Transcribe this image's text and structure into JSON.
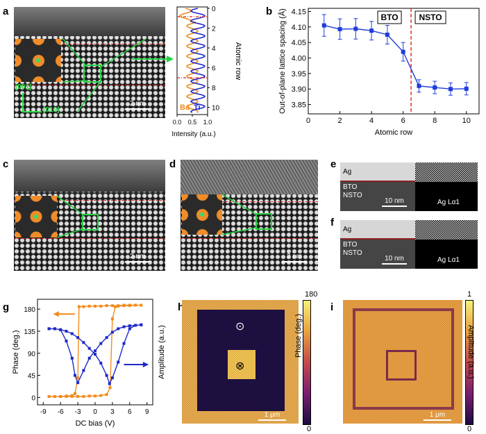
{
  "panels": {
    "a": "a",
    "b": "b",
    "c": "c",
    "d": "d",
    "e": "e",
    "f": "f",
    "g": "g",
    "h": "h",
    "i": "i"
  },
  "a": {
    "axis_001": "[001]",
    "axis_010": "[010]",
    "scalebar": "2 nm",
    "profile": {
      "ylabel": "Atomic row",
      "xlabel": "Intensity (a.u.)",
      "yticks": [
        "0",
        "2",
        "4",
        "6",
        "8",
        "10"
      ],
      "xticks": [
        "0.0",
        "0.5",
        "1.0"
      ],
      "ba_label": "Ba",
      "ti_label": "Ti",
      "ba_color": "#f08c1e",
      "ti_color": "#1e28c8"
    }
  },
  "chart_data": [
    {
      "type": "line",
      "panel": "b",
      "x": [
        1,
        2,
        3,
        4,
        5,
        6,
        7,
        8,
        9,
        10
      ],
      "y": [
        4.105,
        4.093,
        4.094,
        4.088,
        4.075,
        4.02,
        3.91,
        3.905,
        3.9,
        3.901
      ],
      "yerr": [
        0.035,
        0.033,
        0.033,
        0.03,
        0.03,
        0.03,
        0.02,
        0.02,
        0.02,
        0.02
      ],
      "xlabel": "Atomic row",
      "ylabel": "Out-of-plane lattice spacing (Å)",
      "xlim": [
        0,
        10.8
      ],
      "ylim": [
        3.82,
        4.16
      ],
      "xticks": [
        "0",
        "2",
        "4",
        "6",
        "8",
        "10"
      ],
      "yticks": [
        "3.85",
        "3.90",
        "3.95",
        "4.00",
        "4.05",
        "4.10",
        "4.15"
      ],
      "boundary_x": 6.5,
      "annotations": [
        "BTO",
        "NSTO"
      ],
      "line_color": "#1e3cdc",
      "boundary_color": "#e02020"
    },
    {
      "type": "line",
      "panel": "g",
      "xlabel": "DC bias (V)",
      "ylabel": "Phase (deg.)",
      "right_label": "Amplitude (a.u.)",
      "xlim": [
        -10,
        10
      ],
      "ylim": [
        -15,
        200
      ],
      "xticks": [
        "-9",
        "-6",
        "-3",
        "0",
        "3",
        "6",
        "9"
      ],
      "yticks": [
        "0",
        "45",
        "90",
        "135",
        "180"
      ],
      "series": [
        {
          "color": "#f08c1e",
          "x": [
            -8,
            -7,
            -6,
            -5,
            -4,
            -3.5,
            -3,
            -2.8,
            -2,
            -1,
            0,
            1,
            2,
            3,
            4,
            5,
            6,
            7,
            8,
            8,
            7,
            6,
            5,
            4,
            3.5,
            3,
            2.6,
            2,
            1,
            0,
            -1,
            -2,
            -3,
            -4,
            -5,
            -6,
            -7,
            -8
          ],
          "y": [
            2,
            2,
            2,
            3,
            4,
            8,
            40,
            185,
            185,
            186,
            186,
            186,
            187,
            187,
            187,
            188,
            188,
            188,
            188,
            188,
            188,
            187,
            187,
            186,
            185,
            160,
            20,
            6,
            4,
            3,
            3,
            2,
            2,
            2,
            2,
            2,
            2,
            2
          ]
        },
        {
          "color": "#1e28c8",
          "x": [
            -8,
            -7,
            -6,
            -5,
            -4,
            -3.5,
            -3,
            -2,
            -1,
            0,
            1,
            2,
            3,
            4,
            5,
            6,
            7,
            8,
            8,
            7,
            6,
            5,
            4,
            3,
            2.5,
            2,
            1,
            0,
            -1,
            -2,
            -3,
            -4,
            -5,
            -6,
            -7,
            -8
          ],
          "y": [
            140,
            140,
            138,
            115,
            80,
            45,
            30,
            55,
            80,
            95,
            110,
            122,
            133,
            140,
            144,
            146,
            147,
            148,
            148,
            147,
            140,
            110,
            72,
            40,
            28,
            45,
            70,
            88,
            100,
            112,
            122,
            130,
            135,
            138,
            140,
            140
          ]
        }
      ]
    }
  ],
  "c": {
    "scalebar": "2 nm"
  },
  "d": {
    "scalebar": "2 nm"
  },
  "e": {
    "ag": "Ag",
    "bto": "BTO",
    "nsto": "NSTO",
    "scalebar": "10 nm",
    "map_label": "Ag Lα1"
  },
  "f": {
    "ag": "Ag",
    "bto": "BTO",
    "nsto": "NSTO",
    "scalebar": "10 nm",
    "map_label": "Ag Lα1"
  },
  "h": {
    "colorbar_label": "Phase (deg.)",
    "cb_max": "180",
    "cb_min": "0",
    "scalebar": "1 μm",
    "marker_up": "⊙",
    "marker_down": "⊗"
  },
  "i": {
    "colorbar_label": "Amplitude (a.u.)",
    "cb_max": "1",
    "cb_min": "0",
    "scalebar": "1 μm"
  }
}
